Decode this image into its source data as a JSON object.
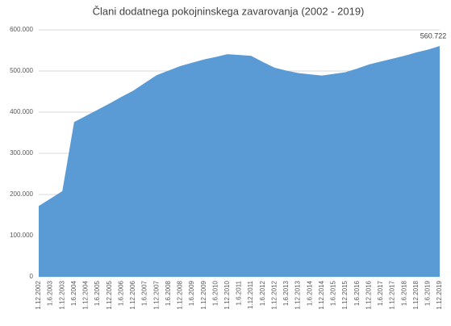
{
  "chart_data": {
    "type": "area",
    "title": "Člani dodatnega pokojninskega zavarovanja (2002 - 2019)",
    "categories": [
      "1.12.2002",
      "1.6.2003",
      "1.12.2003",
      "1.6.2004",
      "1.12.2004",
      "1.6.2005",
      "1.12.2005",
      "1.6.2006",
      "1.12.2006",
      "1.6.2007",
      "1.12.2007",
      "1.6.2008",
      "1.12.2008",
      "1.6.2009",
      "1.12.2009",
      "1.6.2010",
      "1.12.2010",
      "1.6.2011",
      "1.12.2011",
      "1.6.2012",
      "1.12.2012",
      "1.6.2013",
      "1.12.2013",
      "1.6.2014",
      "1.12.2014",
      "1.6.2015",
      "1.12.2015",
      "1.6.2016",
      "1.12.2016",
      "1.6.2017",
      "1.12.2017",
      "1.6.2018",
      "1.12.2018",
      "1.6.2019",
      "1.12.2019"
    ],
    "values": [
      172000,
      190000,
      208000,
      376000,
      391000,
      406000,
      421000,
      437000,
      452000,
      471000,
      490000,
      501000,
      512000,
      520000,
      528000,
      534000,
      541000,
      539000,
      537000,
      522000,
      508000,
      501000,
      495000,
      492000,
      489000,
      493000,
      497000,
      506000,
      516000,
      523000,
      530000,
      537000,
      545000,
      552000,
      560722
    ],
    "value_labels": [
      null,
      null,
      null,
      null,
      null,
      null,
      null,
      null,
      null,
      null,
      null,
      null,
      null,
      null,
      null,
      null,
      null,
      null,
      null,
      null,
      null,
      null,
      null,
      null,
      null,
      null,
      null,
      null,
      null,
      null,
      null,
      null,
      null,
      null,
      "560.722"
    ],
    "color": "#5b9bd5",
    "ylim": [
      0,
      600000
    ],
    "yticks": [
      0,
      {
        "value": 100000,
        "label": "100.000"
      },
      {
        "value": 200000,
        "label": "200.000"
      },
      {
        "value": 300000,
        "label": "300.000"
      },
      {
        "value": 400000,
        "label": "400.000"
      },
      {
        "value": 500000,
        "label": "500.000"
      },
      {
        "value": 600000,
        "label": "600.000"
      }
    ],
    "grid": true
  }
}
